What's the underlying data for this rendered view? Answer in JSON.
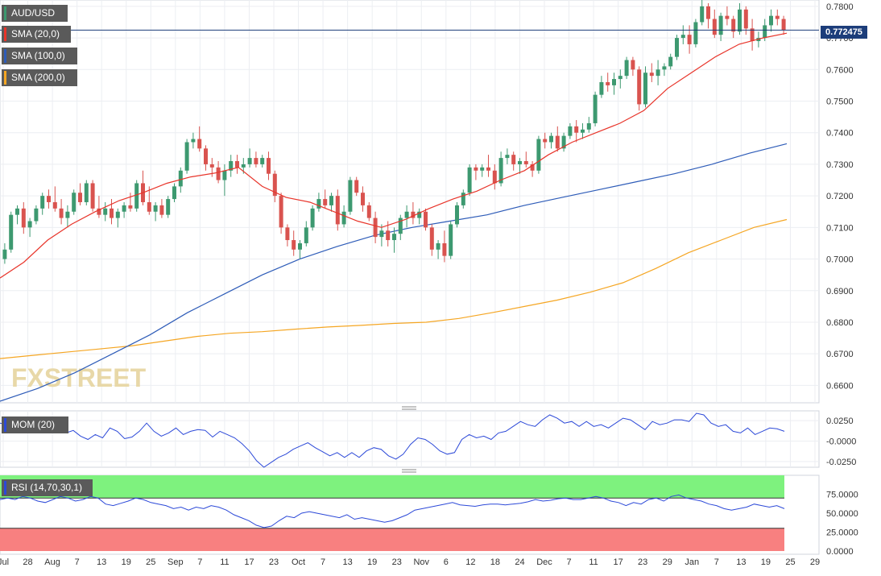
{
  "instrument": "AUD/USD",
  "watermark": "FXSTREET",
  "colors": {
    "up": "#3d9970",
    "down": "#d9534f",
    "sma20": "#e8342a",
    "sma100": "#2e5cb8",
    "sma200": "#f5a623",
    "mom": "#2c49d8",
    "rsi": "#2c49d8",
    "rsi_overbought_zone": "#7ef27e",
    "rsi_oversold_zone": "#f88080",
    "last_price_line": "#1c3d7a"
  },
  "legend": {
    "instrument_label": "AUD/USD",
    "sma20_label": "SMA (20,0)",
    "sma100_label": "SMA (100,0)",
    "sma200_label": "SMA (200,0)",
    "mom_label": "MOM (20)",
    "rsi_label": "RSI (14,70,30,1)"
  },
  "last_price_label": "0.772475",
  "chart_data": [
    {
      "type": "candlestick",
      "title": "AUD/USD",
      "ylim": [
        0.655,
        0.7815
      ],
      "x_ticks": [
        "Jul",
        "28",
        "Aug",
        "7",
        "13",
        "19",
        "25",
        "Sep",
        "7",
        "11",
        "17",
        "23",
        "Oct",
        "7",
        "13",
        "19",
        "23",
        "Nov",
        "6",
        "12",
        "18",
        "24",
        "Dec",
        "7",
        "11",
        "17",
        "23",
        "29",
        "Jan",
        "7",
        "13",
        "19",
        "25",
        "29"
      ],
      "y_ticks": [
        "0.7800",
        "0.7700",
        "0.7600",
        "0.7500",
        "0.7400",
        "0.7300",
        "0.7200",
        "0.7100",
        "0.7000",
        "0.6900",
        "0.6800",
        "0.6700",
        "0.6600"
      ],
      "last_price": 0.772475,
      "candles_ohlc": [
        [
          0.7,
          0.705,
          0.6985,
          0.703
        ],
        [
          0.703,
          0.715,
          0.702,
          0.714
        ],
        [
          0.714,
          0.717,
          0.711,
          0.716
        ],
        [
          0.716,
          0.718,
          0.708,
          0.71
        ],
        [
          0.71,
          0.713,
          0.707,
          0.712
        ],
        [
          0.712,
          0.717,
          0.711,
          0.716
        ],
        [
          0.716,
          0.721,
          0.714,
          0.72
        ],
        [
          0.72,
          0.722,
          0.716,
          0.718
        ],
        [
          0.718,
          0.723,
          0.715,
          0.716
        ],
        [
          0.716,
          0.719,
          0.711,
          0.713
        ],
        [
          0.713,
          0.717,
          0.71,
          0.715
        ],
        [
          0.715,
          0.722,
          0.714,
          0.721
        ],
        [
          0.721,
          0.724,
          0.717,
          0.718
        ],
        [
          0.718,
          0.725,
          0.717,
          0.724
        ],
        [
          0.724,
          0.725,
          0.715,
          0.716
        ],
        [
          0.716,
          0.72,
          0.713,
          0.714
        ],
        [
          0.714,
          0.718,
          0.712,
          0.716
        ],
        [
          0.716,
          0.719,
          0.711,
          0.713
        ],
        [
          0.713,
          0.716,
          0.71,
          0.715
        ],
        [
          0.715,
          0.718,
          0.713,
          0.717
        ],
        [
          0.717,
          0.721,
          0.715,
          0.716
        ],
        [
          0.716,
          0.725,
          0.715,
          0.724
        ],
        [
          0.724,
          0.728,
          0.717,
          0.718
        ],
        [
          0.718,
          0.723,
          0.714,
          0.715
        ],
        [
          0.715,
          0.718,
          0.712,
          0.717
        ],
        [
          0.717,
          0.719,
          0.713,
          0.714
        ],
        [
          0.714,
          0.72,
          0.713,
          0.719
        ],
        [
          0.719,
          0.724,
          0.718,
          0.723
        ],
        [
          0.723,
          0.729,
          0.721,
          0.728
        ],
        [
          0.728,
          0.738,
          0.727,
          0.737
        ],
        [
          0.737,
          0.74,
          0.735,
          0.738
        ],
        [
          0.738,
          0.742,
          0.734,
          0.735
        ],
        [
          0.735,
          0.736,
          0.728,
          0.73
        ],
        [
          0.73,
          0.732,
          0.726,
          0.729
        ],
        [
          0.729,
          0.731,
          0.724,
          0.725
        ],
        [
          0.725,
          0.73,
          0.72,
          0.728
        ],
        [
          0.728,
          0.733,
          0.726,
          0.731
        ],
        [
          0.731,
          0.733,
          0.727,
          0.729
        ],
        [
          0.729,
          0.732,
          0.727,
          0.73
        ],
        [
          0.73,
          0.735,
          0.729,
          0.732
        ],
        [
          0.732,
          0.734,
          0.729,
          0.73
        ],
        [
          0.73,
          0.733,
          0.729,
          0.732
        ],
        [
          0.732,
          0.734,
          0.725,
          0.727
        ],
        [
          0.727,
          0.728,
          0.718,
          0.72
        ],
        [
          0.72,
          0.721,
          0.708,
          0.71
        ],
        [
          0.71,
          0.711,
          0.704,
          0.706
        ],
        [
          0.706,
          0.709,
          0.701,
          0.703
        ],
        [
          0.703,
          0.706,
          0.7,
          0.705
        ],
        [
          0.705,
          0.712,
          0.704,
          0.71
        ],
        [
          0.71,
          0.717,
          0.709,
          0.716
        ],
        [
          0.716,
          0.721,
          0.715,
          0.719
        ],
        [
          0.719,
          0.722,
          0.716,
          0.717
        ],
        [
          0.717,
          0.721,
          0.715,
          0.72
        ],
        [
          0.72,
          0.722,
          0.709,
          0.711
        ],
        [
          0.711,
          0.717,
          0.71,
          0.715
        ],
        [
          0.715,
          0.726,
          0.714,
          0.725
        ],
        [
          0.725,
          0.726,
          0.72,
          0.721
        ],
        [
          0.721,
          0.723,
          0.715,
          0.717
        ],
        [
          0.717,
          0.718,
          0.712,
          0.713
        ],
        [
          0.713,
          0.715,
          0.705,
          0.707
        ],
        [
          0.707,
          0.711,
          0.704,
          0.709
        ],
        [
          0.709,
          0.712,
          0.704,
          0.706
        ],
        [
          0.706,
          0.71,
          0.702,
          0.708
        ],
        [
          0.708,
          0.714,
          0.706,
          0.713
        ],
        [
          0.713,
          0.717,
          0.71,
          0.715
        ],
        [
          0.715,
          0.718,
          0.711,
          0.713
        ],
        [
          0.713,
          0.716,
          0.711,
          0.715
        ],
        [
          0.715,
          0.716,
          0.709,
          0.71
        ],
        [
          0.71,
          0.711,
          0.701,
          0.703
        ],
        [
          0.703,
          0.706,
          0.7,
          0.705
        ],
        [
          0.705,
          0.709,
          0.699,
          0.701
        ],
        [
          0.701,
          0.712,
          0.7,
          0.711
        ],
        [
          0.711,
          0.718,
          0.71,
          0.717
        ],
        [
          0.717,
          0.722,
          0.716,
          0.721
        ],
        [
          0.721,
          0.73,
          0.72,
          0.729
        ],
        [
          0.729,
          0.73,
          0.725,
          0.728
        ],
        [
          0.728,
          0.73,
          0.726,
          0.729
        ],
        [
          0.729,
          0.733,
          0.726,
          0.728
        ],
        [
          0.728,
          0.73,
          0.722,
          0.724
        ],
        [
          0.724,
          0.734,
          0.723,
          0.732
        ],
        [
          0.732,
          0.735,
          0.73,
          0.733
        ],
        [
          0.733,
          0.734,
          0.728,
          0.73
        ],
        [
          0.73,
          0.732,
          0.727,
          0.731
        ],
        [
          0.731,
          0.734,
          0.729,
          0.73
        ],
        [
          0.73,
          0.731,
          0.726,
          0.728
        ],
        [
          0.728,
          0.739,
          0.727,
          0.738
        ],
        [
          0.738,
          0.74,
          0.735,
          0.737
        ],
        [
          0.737,
          0.74,
          0.735,
          0.739
        ],
        [
          0.739,
          0.742,
          0.734,
          0.735
        ],
        [
          0.735,
          0.74,
          0.734,
          0.739
        ],
        [
          0.739,
          0.743,
          0.738,
          0.742
        ],
        [
          0.742,
          0.744,
          0.737,
          0.74
        ],
        [
          0.74,
          0.743,
          0.738,
          0.741
        ],
        [
          0.741,
          0.745,
          0.74,
          0.743
        ],
        [
          0.743,
          0.753,
          0.742,
          0.752
        ],
        [
          0.752,
          0.758,
          0.751,
          0.756
        ],
        [
          0.756,
          0.759,
          0.753,
          0.755
        ],
        [
          0.755,
          0.759,
          0.752,
          0.757
        ],
        [
          0.757,
          0.76,
          0.754,
          0.758
        ],
        [
          0.758,
          0.764,
          0.757,
          0.763
        ],
        [
          0.763,
          0.764,
          0.758,
          0.76
        ],
        [
          0.76,
          0.761,
          0.747,
          0.749
        ],
        [
          0.749,
          0.761,
          0.748,
          0.759
        ],
        [
          0.759,
          0.762,
          0.756,
          0.758
        ],
        [
          0.758,
          0.763,
          0.755,
          0.76
        ],
        [
          0.76,
          0.762,
          0.758,
          0.761
        ],
        [
          0.761,
          0.765,
          0.76,
          0.764
        ],
        [
          0.764,
          0.771,
          0.763,
          0.77
        ],
        [
          0.77,
          0.774,
          0.768,
          0.771
        ],
        [
          0.771,
          0.774,
          0.765,
          0.768
        ],
        [
          0.768,
          0.776,
          0.767,
          0.775
        ],
        [
          0.775,
          0.782,
          0.774,
          0.78
        ],
        [
          0.78,
          0.781,
          0.773,
          0.776
        ],
        [
          0.776,
          0.779,
          0.77,
          0.771
        ],
        [
          0.771,
          0.778,
          0.769,
          0.777
        ],
        [
          0.777,
          0.78,
          0.774,
          0.776
        ],
        [
          0.776,
          0.777,
          0.77,
          0.772
        ],
        [
          0.772,
          0.781,
          0.771,
          0.779
        ],
        [
          0.779,
          0.78,
          0.771,
          0.773
        ],
        [
          0.773,
          0.776,
          0.766,
          0.769
        ],
        [
          0.769,
          0.772,
          0.767,
          0.77
        ],
        [
          0.77,
          0.776,
          0.769,
          0.774
        ],
        [
          0.774,
          0.779,
          0.772,
          0.777
        ],
        [
          0.777,
          0.779,
          0.774,
          0.776
        ],
        [
          0.776,
          0.777,
          0.771,
          0.7725
        ]
      ],
      "sma20": [
        0.694,
        0.699,
        0.706,
        0.711,
        0.715,
        0.7185,
        0.721,
        0.724,
        0.726,
        0.7272,
        0.729,
        0.723,
        0.7195,
        0.718,
        0.715,
        0.712,
        0.71,
        0.7125,
        0.716,
        0.719,
        0.7215,
        0.725,
        0.728,
        0.733,
        0.737,
        0.74,
        0.743,
        0.747,
        0.754,
        0.759,
        0.764,
        0.768,
        0.77,
        0.7715
      ],
      "sma100": [
        0.655,
        0.659,
        0.664,
        0.67,
        0.676,
        0.683,
        0.689,
        0.695,
        0.7,
        0.704,
        0.7075,
        0.71,
        0.712,
        0.714,
        0.717,
        0.7195,
        0.722,
        0.7245,
        0.727,
        0.73,
        0.7335,
        0.7365
      ],
      "sma200": [
        0.6685,
        0.6695,
        0.6705,
        0.6715,
        0.6725,
        0.674,
        0.6755,
        0.6765,
        0.677,
        0.6778,
        0.6785,
        0.679,
        0.6796,
        0.68,
        0.6812,
        0.683,
        0.685,
        0.687,
        0.6895,
        0.6925,
        0.697,
        0.702,
        0.706,
        0.71,
        0.7125
      ]
    },
    {
      "type": "line",
      "title": "MOM (20)",
      "ylim": [
        -0.03,
        0.035
      ],
      "y_ticks": [
        "0.0250",
        "-0.0000",
        "-0.0250"
      ],
      "values": [
        0.022,
        0.02,
        0.024,
        0.018,
        0.026,
        0.028,
        0.022,
        0.018,
        0.016,
        0.01,
        0.013,
        0.006,
        0.002,
        0.008,
        0.004,
        0.016,
        0.012,
        0.003,
        0.005,
        0.012,
        0.022,
        0.012,
        0.006,
        0.01,
        0.016,
        0.008,
        0.012,
        0.014,
        0.013,
        0.005,
        0.012,
        0.008,
        0.004,
        -0.003,
        -0.012,
        -0.024,
        -0.032,
        -0.026,
        -0.02,
        -0.016,
        -0.01,
        -0.006,
        -0.002,
        -0.008,
        -0.013,
        -0.018,
        -0.014,
        -0.02,
        -0.014,
        -0.02,
        -0.012,
        -0.008,
        -0.01,
        -0.018,
        -0.022,
        -0.016,
        -0.004,
        0.004,
        0.002,
        -0.004,
        -0.012,
        -0.016,
        -0.014,
        0.002,
        0.008,
        0.004,
        0.006,
        0.002,
        0.01,
        0.012,
        0.018,
        0.024,
        0.02,
        0.018,
        0.026,
        0.032,
        0.028,
        0.022,
        0.024,
        0.018,
        0.024,
        0.018,
        0.02,
        0.016,
        0.022,
        0.028,
        0.026,
        0.02,
        0.014,
        0.024,
        0.02,
        0.022,
        0.026,
        0.026,
        0.024,
        0.034,
        0.032,
        0.022,
        0.018,
        0.02,
        0.012,
        0.01,
        0.016,
        0.008,
        0.012,
        0.016,
        0.015,
        0.012
      ]
    },
    {
      "type": "line",
      "title": "RSI (14,70,30,1)",
      "ylim": [
        0,
        100
      ],
      "y_ticks": [
        "75.0000",
        "50.0000",
        "25.0000",
        "0.0000"
      ],
      "overbought": 70,
      "oversold": 30,
      "values": [
        68,
        70,
        68,
        72,
        70,
        66,
        64,
        68,
        72,
        70,
        66,
        68,
        72,
        70,
        62,
        60,
        63,
        66,
        70,
        68,
        64,
        62,
        60,
        56,
        58,
        54,
        58,
        56,
        60,
        58,
        54,
        48,
        44,
        40,
        34,
        31,
        33,
        40,
        46,
        44,
        50,
        52,
        50,
        48,
        46,
        44,
        48,
        42,
        44,
        42,
        40,
        38,
        40,
        44,
        48,
        54,
        56,
        58,
        60,
        62,
        64,
        61,
        60,
        59,
        61,
        62,
        62,
        61,
        62,
        63,
        65,
        68,
        66,
        67,
        69,
        70,
        68,
        68,
        70,
        72,
        70,
        66,
        64,
        60,
        64,
        62,
        68,
        70,
        66,
        72,
        74,
        70,
        68,
        66,
        62,
        60,
        56,
        54,
        56,
        58,
        62,
        60,
        58,
        60,
        56
      ]
    }
  ]
}
